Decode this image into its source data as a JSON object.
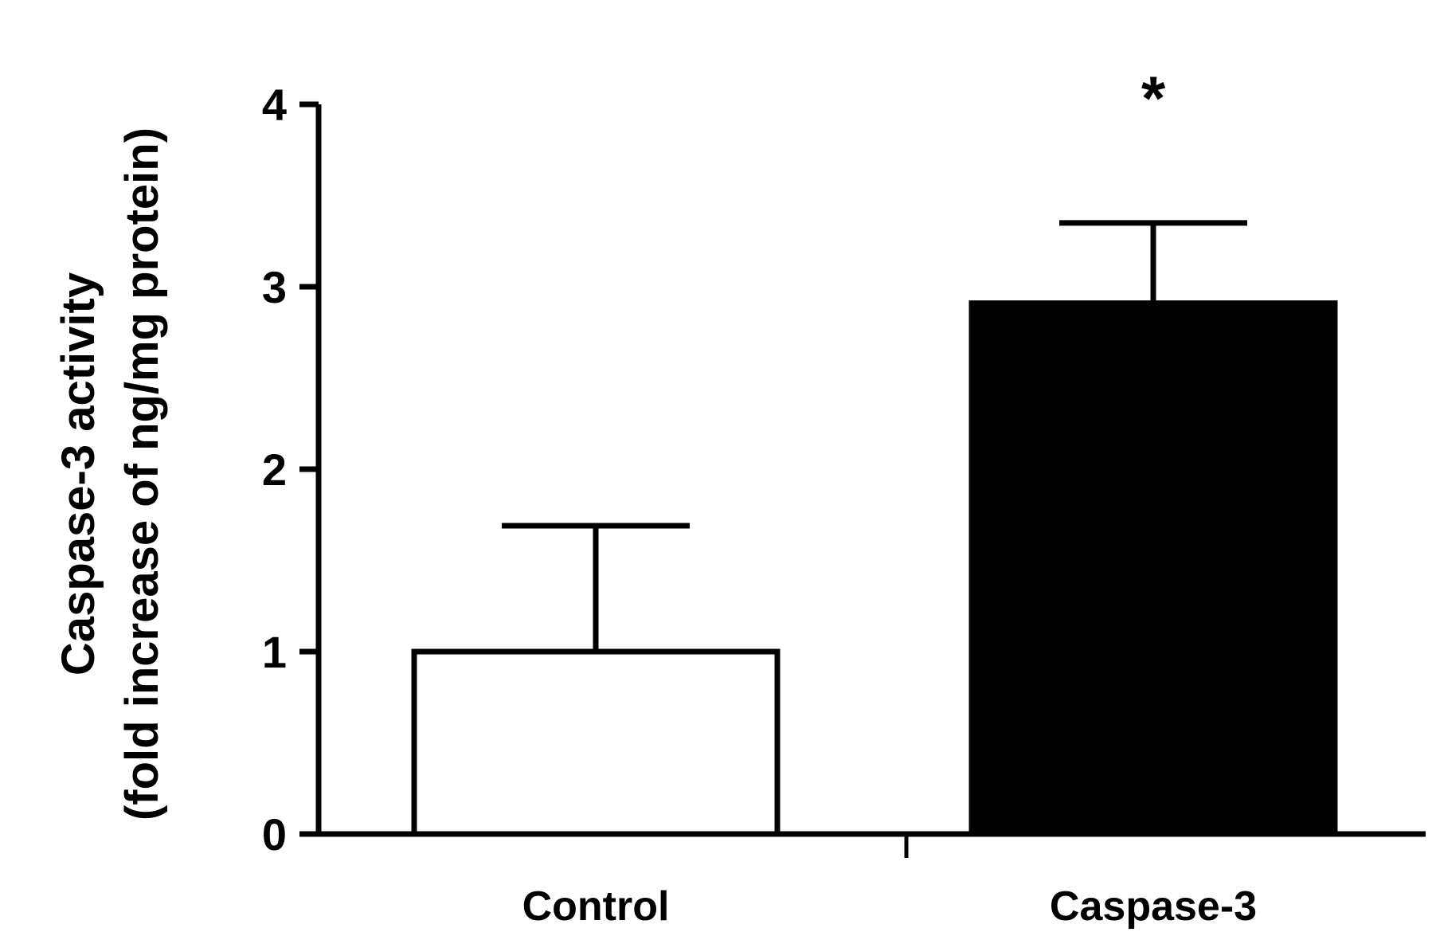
{
  "chart_data": {
    "type": "bar",
    "title": "",
    "xlabel": "",
    "ylabel_line1": "Caspase-3 activity",
    "ylabel_line2": "(fold increase of ng/mg protein)",
    "ylim": [
      0,
      4
    ],
    "yticks": [
      "0",
      "1",
      "2",
      "3",
      "4"
    ],
    "categories": [
      "Control",
      "Caspase-3"
    ],
    "values": [
      1.0,
      2.91
    ],
    "error_upper": [
      0.69,
      0.44
    ],
    "bar_fill": [
      "#ffffff",
      "#000000"
    ],
    "bar_edge": "#000000",
    "annotations": [
      {
        "category_index": 1,
        "text": "*"
      }
    ],
    "grid": false,
    "legend": "none"
  }
}
